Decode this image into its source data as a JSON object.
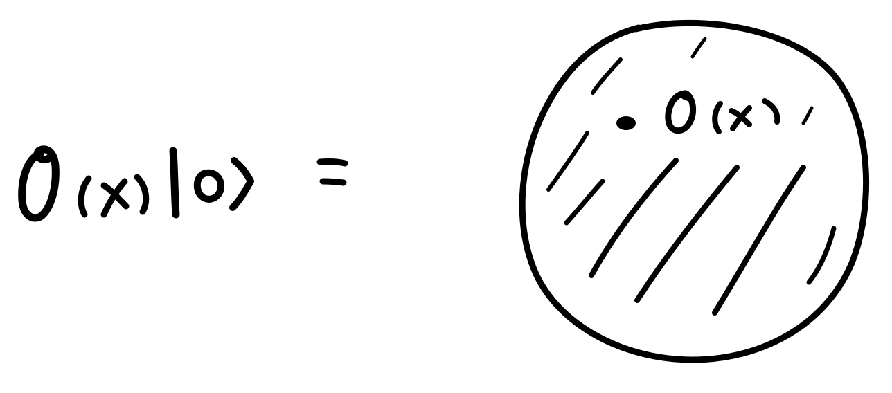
{
  "equation": {
    "lhs": "O(x)|0⟩",
    "equals": "="
  },
  "diagram": {
    "operator_label": "O(x)",
    "ink_color": "#000000",
    "background_color": "#ffffff",
    "disk_fill": "hatched"
  }
}
